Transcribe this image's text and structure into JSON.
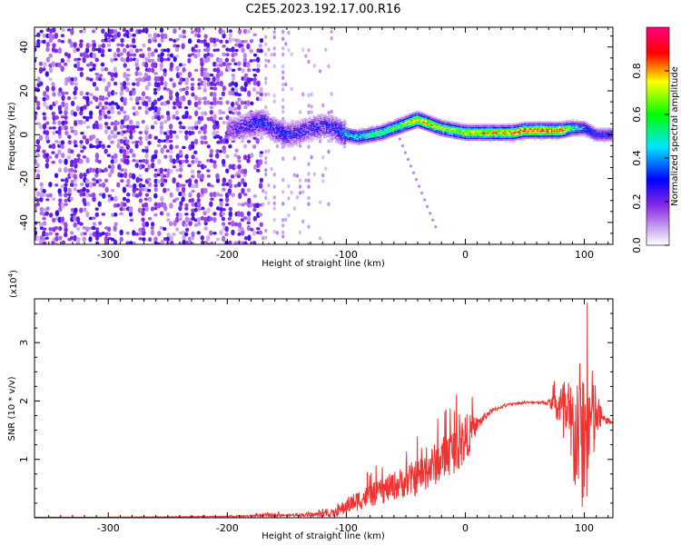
{
  "figure": {
    "title": "C2E5.2023.192.17.00.R16"
  },
  "chart_data": [
    {
      "type": "heatmap",
      "name": "spectrogram",
      "xlabel": "Height of straight line (km)",
      "ylabel": "Frequency (Hz)",
      "xlim": [
        -362,
        124
      ],
      "ylim": [
        -50,
        49
      ],
      "xticks": [
        -300,
        -200,
        -100,
        0,
        100
      ],
      "xtick_labels": [
        "-300",
        "-200",
        "-100",
        "0",
        "100"
      ],
      "yticks": [
        -40,
        -20,
        0,
        20,
        40
      ],
      "ytick_labels": [
        "-40",
        "-20",
        "0",
        "20",
        "40"
      ],
      "colorbar": {
        "label": "Normalized spectral amplitude",
        "range": [
          0,
          1
        ],
        "ticks": [
          0.0,
          0.2,
          0.4,
          0.6,
          0.8
        ],
        "tick_labels": [
          "0.0",
          "0.2",
          "0.4",
          "0.6",
          "0.8"
        ],
        "colormap": [
          "#ffffff",
          "#8a2be2",
          "#0000ff",
          "#00e5ff",
          "#00ff00",
          "#ffff00",
          "#ff0000",
          "#ff007f"
        ]
      },
      "noise_region": {
        "x": [
          -362,
          -170
        ],
        "y": [
          -50,
          49
        ],
        "level": 0.12
      },
      "sparse_region": {
        "x": [
          -170,
          -110
        ],
        "y": [
          -50,
          49
        ],
        "level": 0.03
      },
      "signal_ridge": {
        "x": [
          -200,
          -170,
          -160,
          -150,
          -140,
          -130,
          -120,
          -110,
          -100,
          -90,
          -80,
          -70,
          -60,
          -50,
          -40,
          -30,
          -20,
          -10,
          0,
          10,
          20,
          30,
          40,
          50,
          60,
          70,
          80,
          90,
          100,
          110,
          124
        ],
        "y": [
          2,
          6,
          2,
          0,
          1,
          3,
          4,
          3,
          0,
          -1,
          0,
          1,
          3,
          5,
          7,
          5,
          3,
          2,
          1,
          1,
          1,
          1,
          1,
          2,
          2,
          2,
          2,
          3,
          3,
          0,
          0
        ],
        "amplitude": [
          0.2,
          0.35,
          0.3,
          0.32,
          0.3,
          0.3,
          0.3,
          0.3,
          0.45,
          0.5,
          0.55,
          0.6,
          0.6,
          0.7,
          0.85,
          0.8,
          0.7,
          0.7,
          0.75,
          0.75,
          0.8,
          0.8,
          0.85,
          0.9,
          0.9,
          0.9,
          0.9,
          0.55,
          0.4,
          0.3,
          0.3
        ]
      },
      "faint_trail": {
        "x": [
          -55,
          -25
        ],
        "y": [
          -2,
          -42
        ]
      }
    },
    {
      "type": "line",
      "name": "snr",
      "xlabel": "Height of straight line (km)",
      "ylabel": "SNR (10 * v/v)",
      "scale_label": "(x10",
      "scale_exponent": "4",
      "scale_close": ")",
      "xlim": [
        -362,
        124
      ],
      "ylim": [
        0,
        3.75
      ],
      "xticks": [
        -300,
        -200,
        -100,
        0,
        100
      ],
      "xtick_labels": [
        "-300",
        "-200",
        "-100",
        "0",
        "100"
      ],
      "yticks": [
        1,
        2,
        3
      ],
      "ytick_labels": [
        "1",
        "2",
        "3"
      ],
      "line_color": "#ee3333",
      "series": [
        {
          "x": [
            -362,
            -300,
            -200,
            -180,
            -160,
            -150,
            -140,
            -130,
            -120,
            -110,
            -100,
            -90,
            -80,
            -70,
            -60,
            -50,
            -40,
            -30,
            -20,
            -10,
            0,
            10,
            20,
            30,
            40,
            50,
            60,
            70,
            75,
            80,
            85,
            90,
            95,
            100,
            105,
            110,
            115,
            124
          ],
          "y": [
            0.01,
            0.01,
            0.02,
            0.03,
            0.05,
            0.04,
            0.05,
            0.05,
            0.06,
            0.08,
            0.2,
            0.3,
            0.38,
            0.45,
            0.55,
            0.62,
            0.7,
            0.85,
            1.0,
            1.15,
            1.35,
            1.6,
            1.8,
            1.9,
            1.95,
            1.97,
            1.98,
            1.97,
            1.95,
            1.85,
            1.6,
            1.4,
            1.5,
            1.3,
            1.6,
            1.75,
            1.7,
            1.62
          ],
          "noise": [
            0.0,
            0.0,
            0.01,
            0.02,
            0.04,
            0.02,
            0.03,
            0.04,
            0.05,
            0.07,
            0.14,
            0.18,
            0.2,
            0.22,
            0.25,
            0.28,
            0.32,
            0.35,
            0.38,
            0.4,
            0.45,
            0.12,
            0.05,
            0.03,
            0.02,
            0.02,
            0.02,
            0.05,
            0.2,
            0.5,
            0.8,
            1.0,
            1.2,
            1.35,
            1.1,
            0.55,
            0.08,
            0.04
          ]
        }
      ]
    }
  ]
}
